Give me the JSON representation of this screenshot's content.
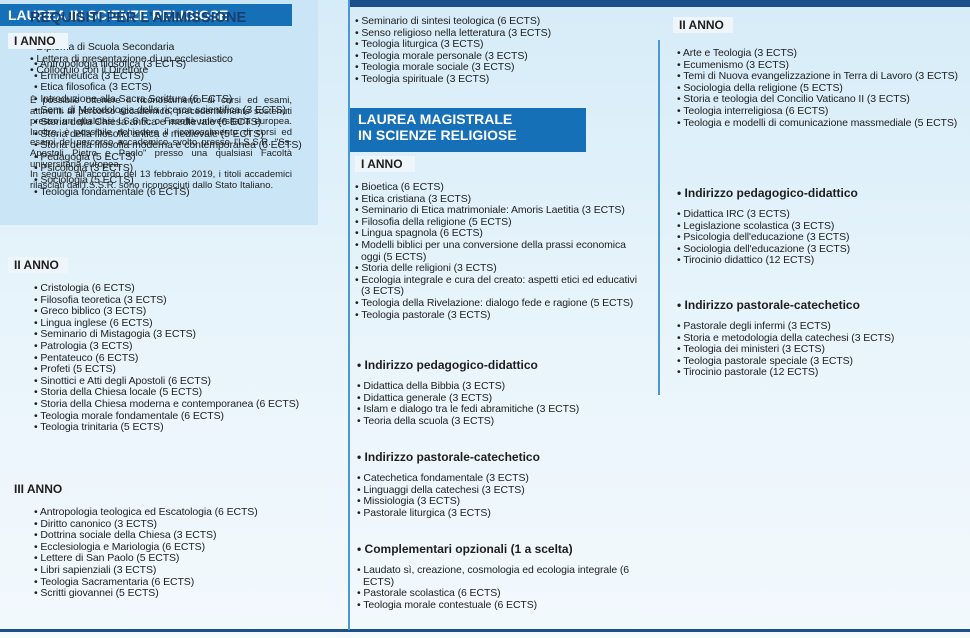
{
  "col1": {
    "title": "LAUREA IN SCIENZE RELIGIOSE",
    "sections": [
      {
        "heading": "I ANNO",
        "items": [
          "Antropologia filosofica (3 ECTS)",
          "Ermeneutica (3 ECTS)",
          "Etica filosofica (3 ECTS)",
          "Introduzione alla Sacra Scrittura (6 ECTS)",
          "Sem. di Metodologia della ricerca scientifica (3 ECTS)",
          "Storia della Chiesa antica e medievale (6 ECTS)",
          "Storia della filosofia antica e medievale (5 ECTS)",
          "Storia della filosofia moderna e contemporanea (6 ECTS)",
          "Pedagogia (5 ECTS)",
          "Psicologia (3 ECTS)",
          "Sociologia (5 ECTS)",
          "Teologia fondamentale (6 ECTS)"
        ]
      },
      {
        "heading": "II ANNO",
        "items": [
          "Cristologia (6 ECTS)",
          "Filosofia teoretica (3 ECTS)",
          "Greco biblico (3 ECTS)",
          "Lingua inglese (6 ECTS)",
          "Seminario di Mistagogia (3 ECTS)",
          "Patrologia (3 ECTS)",
          "Pentateuco (6 ECTS)",
          "Profeti (5 ECTS)",
          "Sinottici e Atti degli Apostoli (6 ECTS)",
          "Storia della Chiesa locale (5 ECTS)",
          "Storia della Chiesa moderna e contemporanea (6 ECTS)",
          "Teologia morale fondamentale (6 ECTS)",
          "Teologia trinitaria (5 ECTS)"
        ]
      },
      {
        "heading": "III ANNO",
        "items": [
          "Antropologia teologica ed Escatologia (6 ECTS)",
          "Diritto canonico (3 ECTS)",
          "Dottrina sociale della Chiesa (3 ECTS)",
          "Ecclesiologia e Mariologia (6 ECTS)",
          "Lettere di San Paolo (5 ECTS)",
          "Libri sapienziali (3 ECTS)",
          "Teologia Sacramentaria (6 ECTS)",
          "Scritti giovannei (5 ECTS)"
        ]
      }
    ]
  },
  "col2": {
    "items": [
      "Seminario di sintesi teologica (6 ECTS)",
      "Senso religioso nella letteratura (3 ECTS)",
      "Teologia liturgica (3 ECTS)",
      "Teologia morale personale (3 ECTS)",
      "Teologia morale sociale (3 ECTS)",
      "Teologia spirituale (3 ECTS)"
    ],
    "title_lines": [
      "LAUREA MAGISTRALE",
      "IN SCIENZE RELIGIOSE"
    ],
    "sections": [
      {
        "heading": "I ANNO",
        "items": [
          "Bioetica (6 ECTS)",
          "Etica cristiana (3 ECTS)",
          "Seminario di Etica matrimoniale: Amoris Laetitia (3 ECTS)",
          "Filosofia della religione (5 ECTS)",
          "Lingua spagnola (6 ECTS)",
          "Modelli biblici per una conversione della prassi economica oggi (5 ECTS)",
          "Storia delle religioni (3 ECTS)",
          "Ecologia integrale e cura del creato: aspetti etici ed educativi (3 ECTS)",
          "Teologia della Rivelazione: dialogo fede e ragione (5 ECTS)",
          "Teologia pastorale (3 ECTS)"
        ]
      },
      {
        "heading": "Indirizzo pedagogico-didattico",
        "items": [
          "Didattica della Bibbia (3 ECTS)",
          "Didattica generale (3 ECTS)",
          "Islam e dialogo tra le fedi abramitiche (3 ECTS)",
          "Teoria della scuola (3 ECTS)"
        ]
      },
      {
        "heading": "Indirizzo pastorale-catechetico",
        "items": [
          "Catechetica fondamentale (3 ECTS)",
          "Linguaggi della catechesi (3 ECTS)",
          "Missiologia (3 ECTS)",
          "Pastorale liturgica (3 ECTS)"
        ]
      },
      {
        "heading": "Complementari opzionali (1 a scelta)",
        "items": [
          "Laudato sì, creazione, cosmologia ed ecologia integrale (6 ECTS)",
          "Pastorale scolastica (6 ECTS)",
          "Teologia morale contestuale (6 ECTS)"
        ]
      }
    ]
  },
  "col3": {
    "sections": [
      {
        "heading": "II ANNO",
        "items": [
          "Arte e Teologia (3 ECTS)",
          "Ecumenismo (3 ECTS)",
          "Temi di Nuova evangelizzazione in Terra di Lavoro (3 ECTS)",
          "Sociologia della religione (5 ECTS)",
          "Storia e teologia del Concilio Vaticano II (3 ECTS)",
          "Teologia interreligiosa (6 ECTS)",
          "Teologia e modelli di comunicazione massmediale (5 ECTS)"
        ]
      },
      {
        "heading": "Indirizzo pedagogico-didattico",
        "items": [
          "Didattica IRC (3 ECTS)",
          "Legislazione scolastica (3 ECTS)",
          "Psicologia dell'educazione (3 ECTS)",
          "Sociologia dell'educazione (3 ECTS)",
          "Tirocinio didattico (12 ECTS)"
        ]
      },
      {
        "heading": "Indirizzo pastorale-catechetico",
        "items": [
          "Pastorale degli infermi (3 ECTS)",
          "Storia e metodologia della catechesi (3 ECTS)",
          "Teologia dei ministeri (3 ECTS)",
          "Teologia pastorale speciale (3 ECTS)",
          "Tirocinio pastorale (12 ECTS)"
        ]
      }
    ],
    "requirements": {
      "title": "REQUISITI PER L'AMMISSIONE",
      "items": [
        "Diploma di Scuola Secondaria",
        "Lettera di presentazione di un ecclesiastico",
        "Colloquio con il Direttore"
      ],
      "paragraphs": [
        "È possibile ottenere il riconoscimento di corsi ed esami, attinenti al percorso accademico, precedentemente sostenuti presso un qualsiasi I.S.S.R. o Facoltà universitaria europea. Inoltre, è possibile richiedere il riconoscimento di corsi ed esami del percorso accademico svolto presso l'I.S.S.R. \"Ss. Apostoli Pietro e Paolo\" presso una qualsiasi Facoltà universitaria europea.",
        "In seguito all'accordo del 13 febbraio 2019, i titoli accademici rilasciati dall'I.S.S.R. sono riconosciuti dallo Stato Italiano."
      ]
    }
  }
}
